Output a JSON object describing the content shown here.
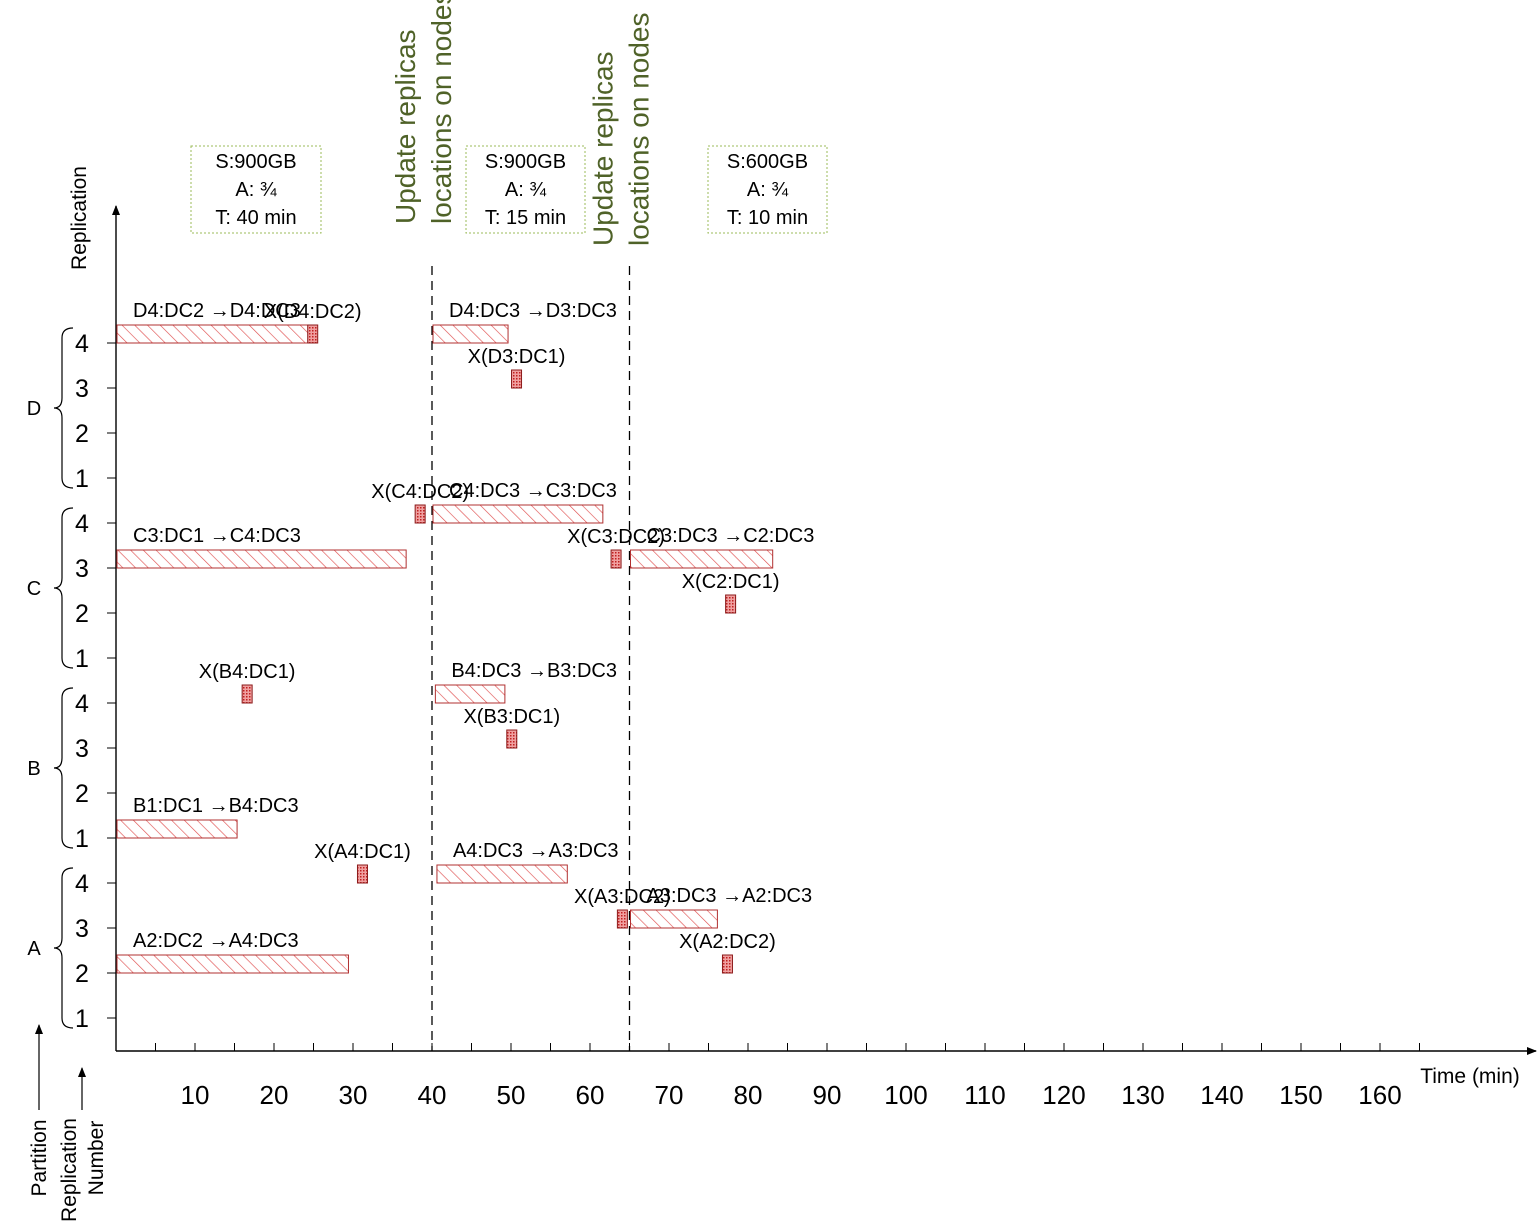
{
  "chart_data": {
    "type": "gantt",
    "xlabel": "Time (min)",
    "ylabel": "Replication",
    "y_axis_caption_partition": "Partition",
    "y_axis_caption_replication_number_line1": "Replication",
    "y_axis_caption_replication_number_line2": "Number",
    "x_ticks": [
      "10",
      "20",
      "30",
      "40",
      "50",
      "60",
      "70",
      "80",
      "90",
      "100",
      "110",
      "120",
      "130",
      "140",
      "150",
      "160"
    ],
    "x_tick_values": [
      10,
      20,
      30,
      40,
      50,
      60,
      70,
      80,
      90,
      100,
      110,
      120,
      130,
      140,
      150,
      160
    ],
    "xlim": [
      0,
      180
    ],
    "partitions": [
      {
        "name": "A",
        "numbers": [
          "1",
          "2",
          "3",
          "4"
        ]
      },
      {
        "name": "B",
        "numbers": [
          "1",
          "2",
          "3",
          "4"
        ]
      },
      {
        "name": "C",
        "numbers": [
          "1",
          "2",
          "3",
          "4"
        ]
      },
      {
        "name": "D",
        "numbers": [
          "1",
          "2",
          "3",
          "4"
        ]
      }
    ],
    "transfers": [
      {
        "partition": "A",
        "replica": 2,
        "start": 0,
        "end": 29.3,
        "label": "A2:DC2 →A4:DC3"
      },
      {
        "partition": "A",
        "replica": 4,
        "start": 40.5,
        "end": 57,
        "label": "A4:DC3 →A3:DC3"
      },
      {
        "partition": "A",
        "replica": 3,
        "start": 65,
        "end": 76,
        "label": "A3:DC3 →A2:DC3"
      },
      {
        "partition": "B",
        "replica": 1,
        "start": 0,
        "end": 15.2,
        "label": "B1:DC1 →B4:DC3"
      },
      {
        "partition": "B",
        "replica": 4,
        "start": 40.3,
        "end": 49.1,
        "label": "B4:DC3 →B3:DC3"
      },
      {
        "partition": "C",
        "replica": 3,
        "start": 0,
        "end": 36.6,
        "label": "C3:DC1 →C4:DC3"
      },
      {
        "partition": "C",
        "replica": 4,
        "start": 40,
        "end": 61.5,
        "label": "C4:DC3 →C3:DC3"
      },
      {
        "partition": "C",
        "replica": 3,
        "start": 65,
        "end": 83,
        "label": "C3:DC3 →C2:DC3"
      },
      {
        "partition": "D",
        "replica": 4,
        "start": 0,
        "end": 24.2,
        "label": "D4:DC2 →D4:DC3"
      },
      {
        "partition": "D",
        "replica": 4,
        "start": 40,
        "end": 49.5,
        "label": "D4:DC3 →D3:DC3"
      }
    ],
    "deletions": [
      {
        "partition": "A",
        "replica": 4,
        "time": 31.2,
        "label": "X(A4:DC1)"
      },
      {
        "partition": "A",
        "replica": 3,
        "time": 64.1,
        "label": "X(A3:DC2)"
      },
      {
        "partition": "A",
        "replica": 2,
        "time": 77.4,
        "label": "X(A2:DC2)"
      },
      {
        "partition": "B",
        "replica": 4,
        "time": 16.6,
        "label": "X(B4:DC1)"
      },
      {
        "partition": "B",
        "replica": 3,
        "time": 50.1,
        "label": "X(B3:DC1)"
      },
      {
        "partition": "C",
        "replica": 4,
        "time": 38.5,
        "label": "X(C4:DC2)"
      },
      {
        "partition": "C",
        "replica": 3,
        "time": 63.3,
        "label": "X(C3:DC2)"
      },
      {
        "partition": "C",
        "replica": 2,
        "time": 77.8,
        "label": "X(C2:DC1)"
      },
      {
        "partition": "D",
        "replica": 4,
        "time": 24.9,
        "label": "X(D4:DC2)"
      },
      {
        "partition": "D",
        "replica": 3,
        "time": 50.7,
        "label": "X(D3:DC1)"
      }
    ],
    "update_markers": [
      {
        "time": 40,
        "line1": "Update replicas",
        "line2": "locations on nodes"
      },
      {
        "time": 65,
        "line1": "Update replicas",
        "line2": "locations on nodes"
      }
    ],
    "phases": [
      {
        "start": 0,
        "end": 40,
        "s": "S:900GB",
        "a": "A: ¾",
        "t": "T: 40 min"
      },
      {
        "start": 40,
        "end": 65,
        "s": "S:900GB",
        "a": "A: ¾",
        "t": "T: 15 min"
      },
      {
        "start": 65,
        "end": 90,
        "s": "S:600GB",
        "a": "A: ¾",
        "t": "T: 10 min"
      }
    ],
    "colors": {
      "hatch": "#e05050",
      "bar_border": "#b03030",
      "marker_fill": "#d04040",
      "update_text": "#4f6228",
      "box_border": "#9bbb59"
    }
  }
}
